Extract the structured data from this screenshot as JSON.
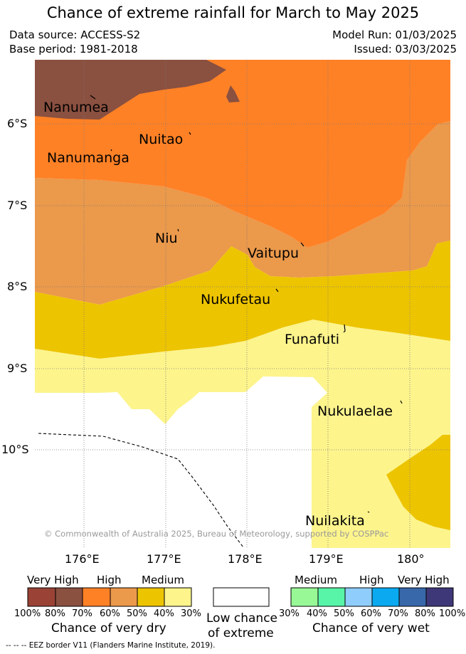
{
  "title": "Chance of extreme rainfall for March to May 2025",
  "meta": {
    "data_source": "Data source: ACCESS-S2",
    "base_period": "Base period: 1981-2018",
    "model_run": "Model Run: 01/03/2025",
    "issued": "Issued: 03/03/2025"
  },
  "map": {
    "latitude_ticks": [
      "6°S",
      "7°S",
      "8°S",
      "9°S",
      "10°S"
    ],
    "longitude_ticks": [
      "176°E",
      "177°E",
      "178°E",
      "179°E",
      "180°"
    ],
    "islands": [
      {
        "name": "Nanumea"
      },
      {
        "name": "Nuitao"
      },
      {
        "name": "Nanumanga"
      },
      {
        "name": "Niu"
      },
      {
        "name": "Vaitupu"
      },
      {
        "name": "Nukufetau"
      },
      {
        "name": "Funafuti"
      },
      {
        "name": "Nukulaelae"
      },
      {
        "name": "Nuilakita"
      }
    ],
    "copyright": "© Commonwealth of Australia 2025, Bureau of Meteorology, supported by COSPPac"
  },
  "legend": {
    "dry": {
      "headers": [
        "Very High",
        "High",
        "Medium"
      ],
      "percent_labels": [
        "100%",
        "80%",
        "70%",
        "60%",
        "50%",
        "40%",
        "30%"
      ],
      "caption": "Chance of very dry",
      "colors": [
        "#9a4236",
        "#8a5040",
        "#ff8126",
        "#eb994b",
        "#edc400",
        "#fdf48c"
      ]
    },
    "low": {
      "caption_line1": "Low chance",
      "caption_line2": "of extreme",
      "color": "#ffffff"
    },
    "wet": {
      "headers": [
        "Medium",
        "High",
        "Very High"
      ],
      "percent_labels": [
        "30%",
        "40%",
        "50%",
        "60%",
        "70%",
        "80%",
        "100%"
      ],
      "caption": "Chance of very wet",
      "colors": [
        "#98f896",
        "#58f4a8",
        "#8ecdfc",
        "#0baaf0",
        "#3868aa",
        "#3f3878"
      ]
    }
  },
  "footer": "--  --  -- EEZ border V11 (Flanders Marine Institute, 2019)."
}
